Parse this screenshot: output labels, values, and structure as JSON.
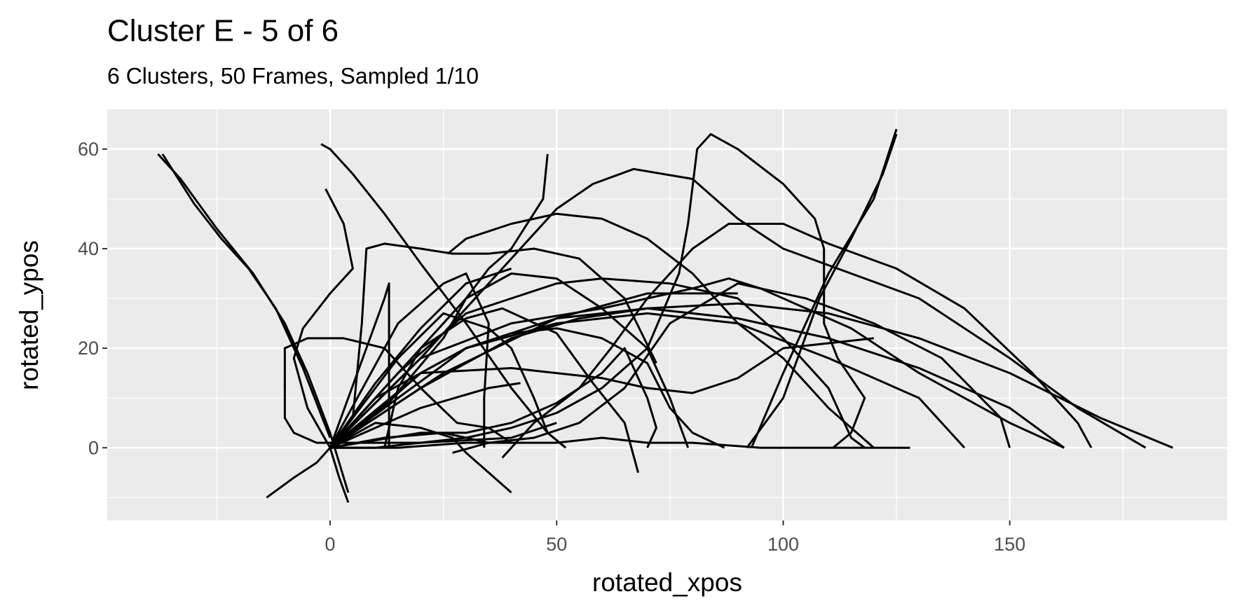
{
  "chart_data": {
    "type": "line",
    "title": "Cluster E - 5 of 6",
    "subtitle": "6 Clusters, 50 Frames, Sampled 1/10",
    "x_label": "rotated_xpos",
    "y_label": "rotated_ypos",
    "xlim": [
      -49.2,
      198
    ],
    "ylim": [
      -14.6,
      68
    ],
    "xticks": [
      0,
      50,
      100,
      150
    ],
    "yticks": [
      0,
      20,
      40,
      60
    ],
    "xminorticks": [
      -25,
      25,
      75,
      125,
      175
    ],
    "yminorticks": [
      -10,
      10,
      30,
      50
    ],
    "grid": true,
    "color": "#000000",
    "panel_color": "#ebebeb",
    "series": [
      {
        "x": [
          -38,
          -33,
          -25,
          -17,
          -10,
          -5,
          0,
          4
        ],
        "values": [
          59,
          54,
          44,
          35,
          25,
          15,
          3,
          -9
        ]
      },
      {
        "x": [
          -37,
          -30,
          -24,
          -18,
          -12,
          -6,
          0
        ],
        "values": [
          59,
          49,
          42,
          36,
          28,
          16,
          2
        ]
      },
      {
        "x": [
          -2,
          0,
          5,
          12,
          20,
          30,
          40,
          48,
          52
        ],
        "values": [
          61,
          60,
          55,
          47,
          37,
          25,
          12,
          3,
          0
        ]
      },
      {
        "x": [
          -1,
          3,
          5,
          0,
          -6,
          -8,
          -5,
          0,
          2,
          4
        ],
        "values": [
          52,
          45,
          36,
          31,
          24,
          18,
          8,
          0,
          -6,
          -11
        ]
      },
      {
        "x": [
          0,
          5,
          7,
          8,
          12,
          20,
          27,
          35,
          45,
          55,
          65,
          72
        ],
        "values": [
          0,
          6,
          25,
          40,
          41,
          40,
          39,
          39,
          40,
          38,
          30,
          17
        ]
      },
      {
        "x": [
          0,
          15,
          30,
          40,
          50,
          60,
          75,
          90,
          100,
          110,
          115,
          118
        ],
        "values": [
          0,
          15,
          27,
          30,
          33,
          34,
          33,
          30,
          22,
          12,
          2,
          0
        ]
      },
      {
        "x": [
          0,
          20,
          40,
          50,
          58,
          67,
          80,
          90,
          100,
          115,
          130,
          150,
          165,
          180
        ],
        "values": [
          0,
          18,
          38,
          48,
          53,
          56,
          54,
          46,
          40,
          35,
          30,
          18,
          8,
          0
        ]
      },
      {
        "x": [
          26,
          30,
          40,
          50,
          60,
          70,
          80,
          90,
          100,
          110,
          120
        ],
        "values": [
          39,
          42,
          45,
          47,
          46,
          42,
          35,
          25,
          18,
          8,
          0
        ]
      },
      {
        "x": [
          0,
          20,
          40,
          55,
          70,
          90,
          110,
          130,
          150,
          170,
          186
        ],
        "values": [
          0,
          12,
          22,
          26,
          28,
          29,
          27,
          22,
          15,
          6,
          0
        ]
      },
      {
        "x": [
          0,
          25,
          50,
          70,
          90,
          110,
          130,
          150,
          162
        ],
        "values": [
          0,
          15,
          26,
          28,
          26,
          22,
          16,
          8,
          0
        ]
      },
      {
        "x": [
          0,
          30,
          50,
          70,
          90,
          110,
          130,
          140
        ],
        "values": [
          0,
          20,
          25,
          27,
          25,
          18,
          10,
          0
        ]
      },
      {
        "x": [
          0,
          10,
          30,
          40,
          50,
          60,
          70,
          77,
          79,
          81,
          84,
          90,
          100,
          107,
          109,
          109,
          112,
          118,
          115,
          111
        ],
        "values": [
          0,
          0,
          2,
          4,
          7,
          12,
          20,
          35,
          45,
          60,
          63,
          60,
          53,
          46,
          40,
          25,
          18,
          10,
          3,
          0
        ]
      },
      {
        "x": [
          38,
          45,
          55,
          62,
          70,
          80,
          88,
          100,
          110,
          125,
          140,
          155,
          165,
          168
        ],
        "values": [
          -2,
          5,
          12,
          20,
          30,
          40,
          45,
          45,
          41,
          36,
          28,
          15,
          5,
          0
        ]
      },
      {
        "x": [
          93,
          100,
          110,
          120,
          125
        ],
        "values": [
          0,
          15,
          35,
          50,
          64
        ]
      },
      {
        "x": [
          92,
          100,
          108,
          115,
          122,
          125
        ],
        "values": [
          0,
          10,
          30,
          42,
          55,
          63
        ]
      },
      {
        "x": [
          0,
          10,
          20,
          30,
          40,
          50,
          60,
          70,
          75,
          80,
          87
        ],
        "values": [
          0,
          7,
          15,
          20,
          23,
          24,
          22,
          17,
          8,
          3,
          0
        ]
      },
      {
        "x": [
          0,
          15,
          30,
          40,
          50,
          60,
          70,
          80,
          95,
          105,
          120,
          128
        ],
        "values": [
          0,
          0,
          1,
          1,
          1,
          2,
          1,
          1,
          0,
          0,
          0,
          0
        ]
      },
      {
        "x": [
          -14,
          -8,
          -3,
          0,
          12,
          25,
          30,
          35
        ],
        "values": [
          -10,
          -6,
          -3,
          0,
          2,
          3,
          2,
          1
        ]
      },
      {
        "x": [
          0,
          10,
          20,
          27,
          30,
          35,
          40
        ],
        "values": [
          0,
          5,
          4,
          2,
          -1,
          -5,
          -9
        ]
      },
      {
        "x": [
          0,
          12,
          25,
          30,
          35,
          40,
          47,
          48
        ],
        "values": [
          0,
          8,
          22,
          30,
          36,
          40,
          50,
          59
        ]
      },
      {
        "x": [
          0,
          8,
          12,
          13,
          13,
          13
        ],
        "values": [
          0,
          20,
          30,
          33,
          10,
          0
        ]
      },
      {
        "x": [
          -10,
          -10,
          -5,
          3,
          12,
          20,
          28,
          35,
          40
        ],
        "values": [
          12,
          20,
          22,
          22,
          20,
          12,
          5,
          4,
          1
        ]
      },
      {
        "x": [
          -10,
          -10,
          -8,
          -3,
          5,
          20,
          40,
          50
        ],
        "values": [
          13,
          6,
          3,
          1,
          1,
          1,
          2,
          5
        ]
      },
      {
        "x": [
          0,
          10,
          20,
          30,
          40
        ],
        "values": [
          0,
          13,
          24,
          33,
          36
        ]
      },
      {
        "x": [
          0,
          20,
          35,
          42
        ],
        "values": [
          0,
          8,
          12,
          13
        ]
      },
      {
        "x": [
          0,
          15,
          25,
          35,
          40,
          45,
          48,
          52
        ],
        "values": [
          0,
          18,
          27,
          24,
          20,
          10,
          3,
          0
        ]
      },
      {
        "x": [
          0,
          20,
          30,
          40,
          50,
          60,
          65,
          70,
          72,
          70
        ],
        "values": [
          0,
          3,
          3,
          5,
          9,
          15,
          20,
          10,
          4,
          0
        ]
      },
      {
        "x": [
          12,
          15,
          20,
          30,
          38,
          50,
          58,
          65,
          68
        ],
        "values": [
          0,
          12,
          20,
          26,
          28,
          23,
          13,
          5,
          -5
        ]
      },
      {
        "x": [
          0,
          20,
          40,
          60,
          70,
          80,
          90,
          100,
          110,
          120
        ],
        "values": [
          0,
          15,
          16,
          14,
          12,
          11,
          14,
          20,
          21,
          22
        ]
      },
      {
        "x": [
          0,
          20,
          40,
          60,
          70,
          80,
          88,
          95,
          105,
          115,
          130,
          150,
          162
        ],
        "values": [
          0,
          18,
          25,
          28,
          30,
          32,
          34,
          32,
          28,
          24,
          15,
          5,
          0
        ]
      },
      {
        "x": [
          0,
          10,
          30,
          50,
          70,
          90
        ],
        "values": [
          0,
          10,
          20,
          26,
          31,
          31
        ]
      },
      {
        "x": [
          0,
          20,
          30,
          40,
          50,
          60,
          70,
          75,
          79
        ],
        "values": [
          0,
          20,
          30,
          35,
          34,
          28,
          20,
          10,
          0
        ]
      },
      {
        "x": [
          27,
          35,
          45,
          55,
          65,
          75,
          90,
          105,
          120,
          135,
          148,
          150
        ],
        "values": [
          -1,
          1,
          2,
          5,
          12,
          25,
          33,
          30,
          25,
          18,
          6,
          0
        ]
      },
      {
        "x": [
          0,
          15,
          25,
          30,
          35,
          34,
          34
        ],
        "values": [
          0,
          25,
          33,
          35,
          25,
          10,
          0
        ]
      }
    ]
  }
}
